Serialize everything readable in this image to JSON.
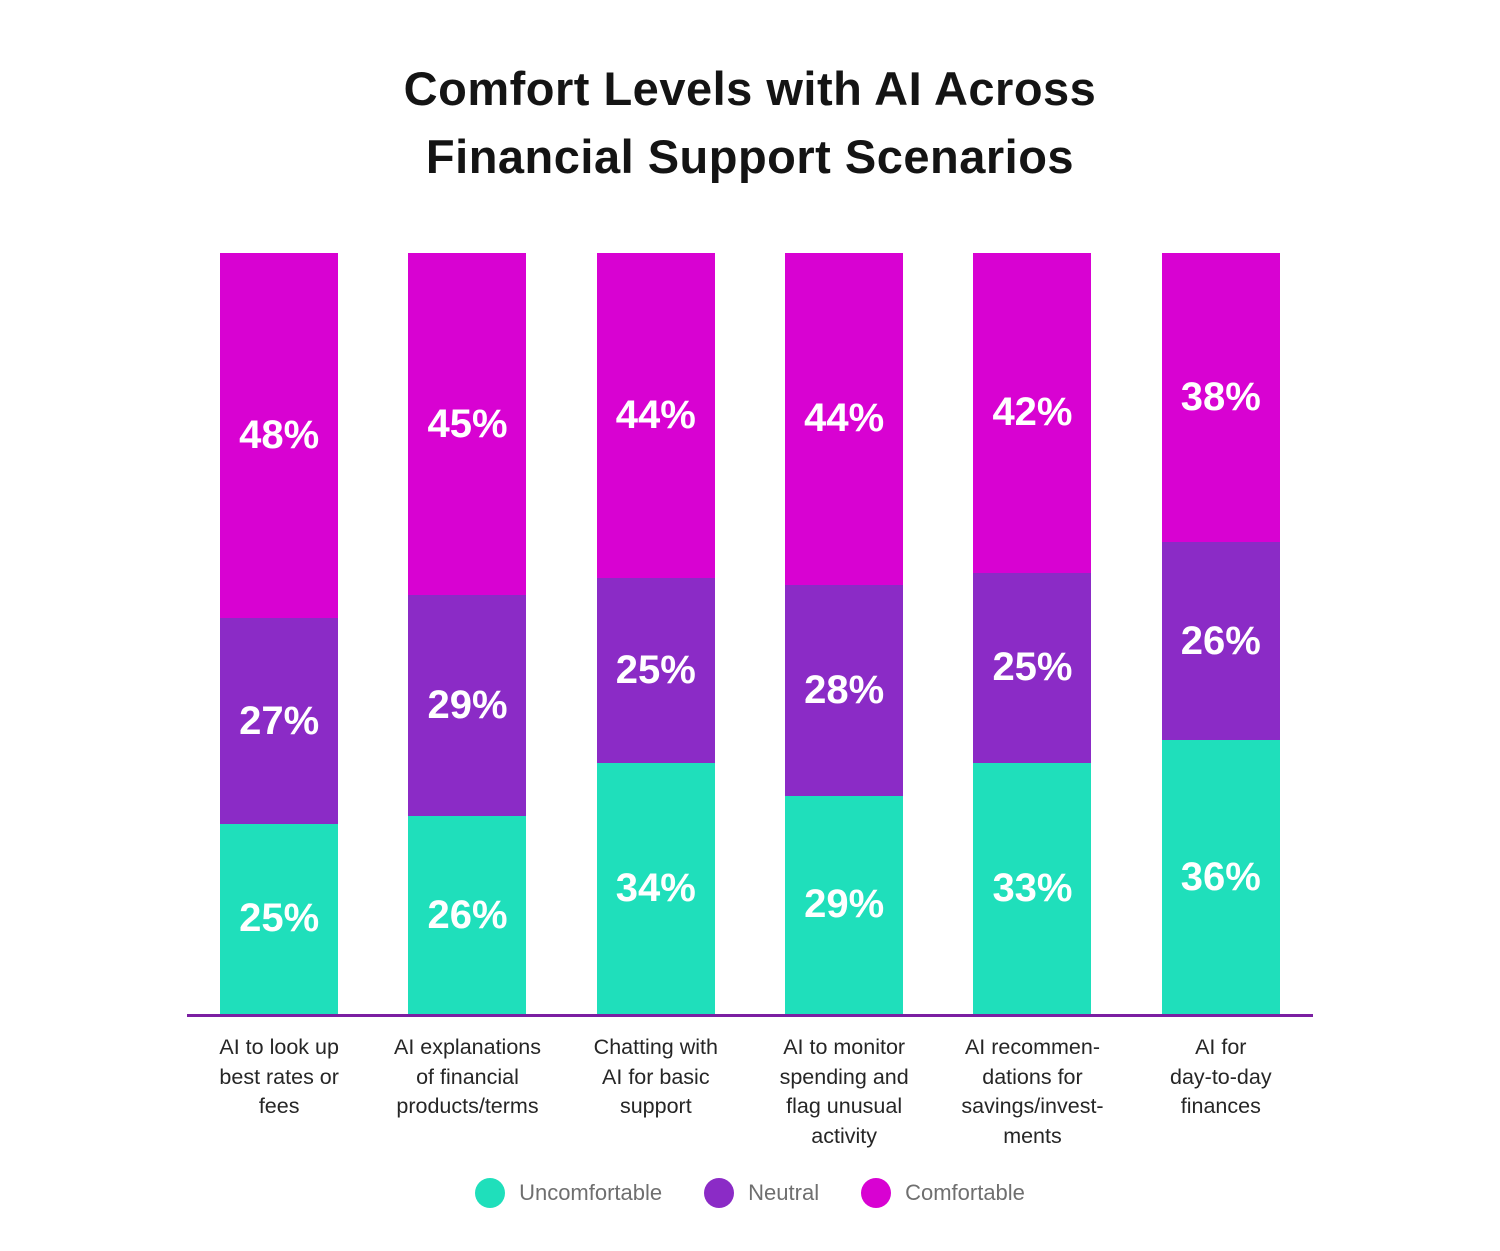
{
  "title": "Comfort Levels with AI Across\nFinancial Support Scenarios",
  "chart_data": {
    "type": "bar",
    "stacked": true,
    "title": "Comfort Levels with AI Across Financial Support Scenarios",
    "legend_position": "bottom",
    "value_suffix": "%",
    "baseline_color": "#7B1FA2",
    "categories": [
      "AI to look up\nbest rates or\nfees",
      "AI explanations\nof financial\nproducts/terms",
      "Chatting with\nAI for basic\nsupport",
      "AI to monitor\nspending and\nflag unusual\nactivity",
      "AI recommen-\ndations for\nsavings/invest-\nments",
      "AI for\nday-to-day\nfinances"
    ],
    "series": [
      {
        "name": "Uncomfortable",
        "color": "#1FDFBB",
        "values": [
          25,
          26,
          34,
          29,
          33,
          36
        ]
      },
      {
        "name": "Neutral",
        "color": "#8B2BC6",
        "values": [
          27,
          29,
          25,
          28,
          25,
          26
        ]
      },
      {
        "name": "Comfortable",
        "color": "#D802D2",
        "values": [
          48,
          45,
          44,
          44,
          42,
          38
        ]
      }
    ]
  },
  "legend": {
    "items": [
      "Uncomfortable",
      "Neutral",
      "Comfortable"
    ]
  }
}
